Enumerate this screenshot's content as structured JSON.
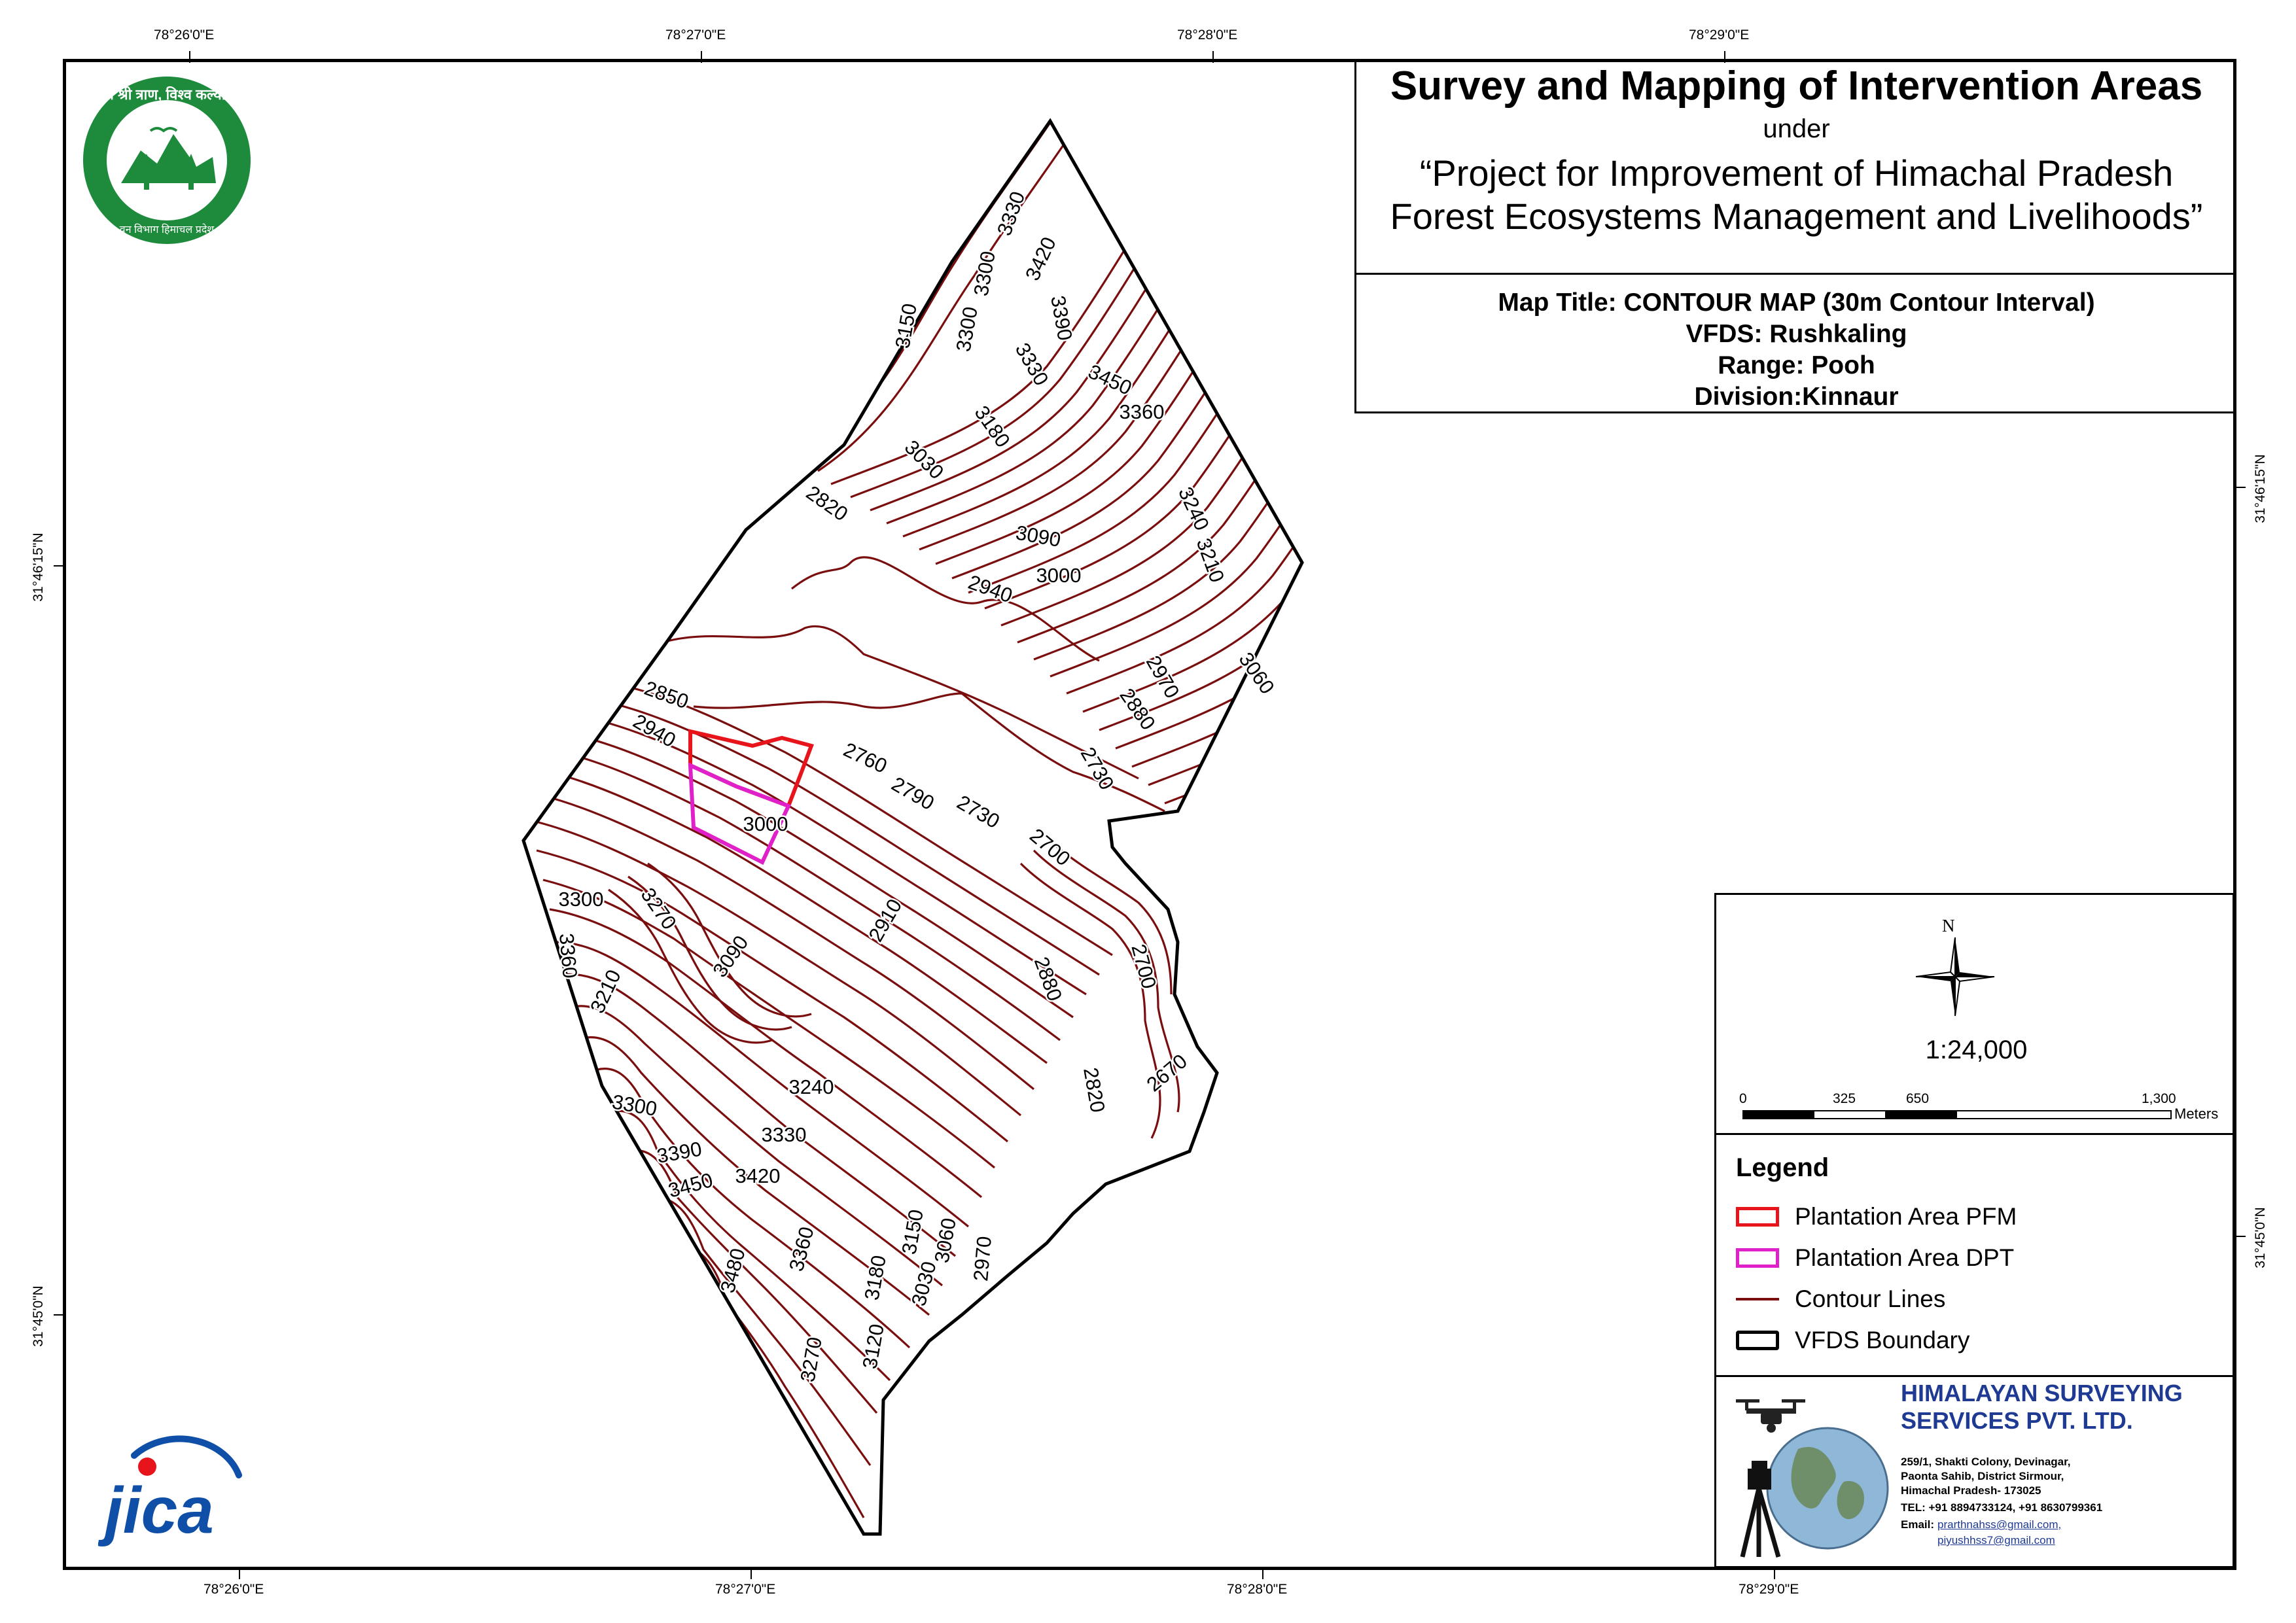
{
  "header": {
    "title": "Survey and Mapping of Intervention Areas",
    "under": "under",
    "project_line1": "“Project for Improvement of Himachal Pradesh",
    "project_line2": "Forest Ecosystems Management and Livelihoods”"
  },
  "map_info": {
    "map_title": "Map Title: CONTOUR MAP (30m Contour Interval)",
    "vfds": "VFDS: Rushkaling",
    "range": "Range: Pooh",
    "division": "Division:Kinnaur"
  },
  "grid": {
    "top_lon": [
      "78°26'0\"E",
      "78°27'0\"E",
      "78°28'0\"E",
      "78°29'0\"E"
    ],
    "bottom_lon": [
      "78°26'0\"E",
      "78°27'0\"E",
      "78°28'0\"E",
      "78°29'0\"E"
    ],
    "left_lat": [
      "31°46'15\"N",
      "31°45'0\"N"
    ],
    "right_lat": [
      "31°46'15\"N",
      "31°45'0\"N"
    ]
  },
  "compass": {
    "north_label": "N"
  },
  "scale": {
    "ratio": "1:24,000",
    "ticks": [
      "0",
      "325",
      "650",
      "1,300"
    ],
    "unit": "Meters"
  },
  "legend": {
    "title": "Legend",
    "items": [
      {
        "label": "Plantation Area PFM",
        "color": "#e8141b",
        "type": "polygon"
      },
      {
        "label": "Plantation Area DPT",
        "color": "#e020c8",
        "type": "polygon"
      },
      {
        "label": "Contour Lines",
        "color": "#7a0e0e",
        "type": "line"
      },
      {
        "label": "VFDS Boundary",
        "color": "#000000",
        "type": "polygon"
      }
    ]
  },
  "contour_labels": [
    "3330",
    "3420",
    "3300",
    "3390",
    "3150",
    "3300",
    "3330",
    "3450",
    "3360",
    "3180",
    "3030",
    "3240",
    "2820",
    "3090",
    "3210",
    "3000",
    "2940",
    "3060",
    "2970",
    "2880",
    "2730",
    "2850",
    "2940",
    "2760",
    "2790",
    "2730",
    "2700",
    "3000",
    "3300",
    "3270",
    "3360",
    "3090",
    "2910",
    "2700",
    "3210",
    "2880",
    "2820",
    "2670",
    "3240",
    "3300",
    "3330",
    "3390",
    "3420",
    "3450",
    "3360",
    "3150",
    "3060",
    "3480",
    "3180",
    "3030",
    "2970",
    "3120",
    "3270"
  ],
  "company": {
    "name_line1": "HIMALAYAN SURVEYING",
    "name_line2": "SERVICES PVT. LTD.",
    "address1": "259/1, Shakti Colony, Devinagar,",
    "address2": "Paonta Sahib, District Sirmour,",
    "address3": "Himachal Pradesh- 173025",
    "tel": "TEL: +91 8894733124, +91 8630799361",
    "email_label": "Email:",
    "email1": "prarthnahss@gmail.com,",
    "email2": "piyushhss7@gmail.com"
  },
  "logos": {
    "forest_dept_top": "वन श्री त्राण, विश्व कल्याण",
    "forest_dept_bottom": "वन विभाग हिमाचल प्रदेश",
    "jica": "jica"
  },
  "colors": {
    "contour": "#7a0e0e",
    "pfm": "#e8141b",
    "dpt": "#e020c8",
    "company_blue": "#1f3a93",
    "logo_green": "#1d8a3c",
    "jica_blue": "#0f4fa8"
  }
}
